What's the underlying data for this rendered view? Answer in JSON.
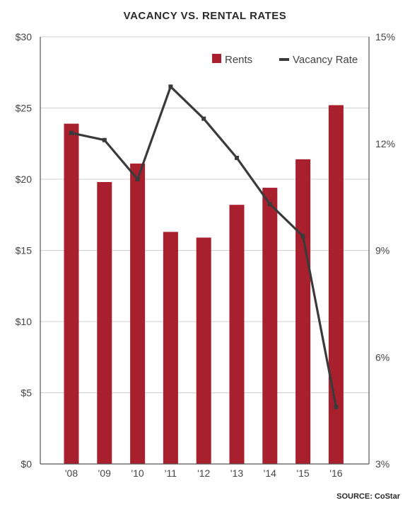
{
  "chart_data": {
    "type": "bar",
    "title": "VACANCY VS. RENTAL RATES",
    "source": "SOURCE: CoStar",
    "categories": [
      "'08",
      "'09",
      "'10",
      "'11",
      "'12",
      "'13",
      "'14",
      "'15",
      "'16"
    ],
    "series": [
      {
        "name": "Rents",
        "type": "bar",
        "axis": "left",
        "color": "#a8202e",
        "values": [
          23.9,
          19.8,
          21.1,
          16.3,
          15.9,
          18.2,
          19.4,
          21.4,
          25.2
        ]
      },
      {
        "name": "Vacancy Rate",
        "type": "line",
        "axis": "right",
        "color": "#3a3a3a",
        "values": [
          12.3,
          12.1,
          11.0,
          13.6,
          12.7,
          11.6,
          10.3,
          9.4,
          4.6
        ]
      }
    ],
    "y_left": {
      "ticks": [
        "$0",
        "$5",
        "$10",
        "$15",
        "$20",
        "$25",
        "$30"
      ],
      "tick_values": [
        0,
        5,
        10,
        15,
        20,
        25,
        30
      ],
      "ylim": [
        0,
        30
      ]
    },
    "y_right": {
      "ticks": [
        "3%",
        "6%",
        "9%",
        "12%",
        "15%"
      ],
      "tick_values": [
        3,
        6,
        9,
        12,
        15
      ],
      "ylim": [
        3,
        15
      ]
    },
    "grid": true,
    "legend_position": "top-right"
  }
}
